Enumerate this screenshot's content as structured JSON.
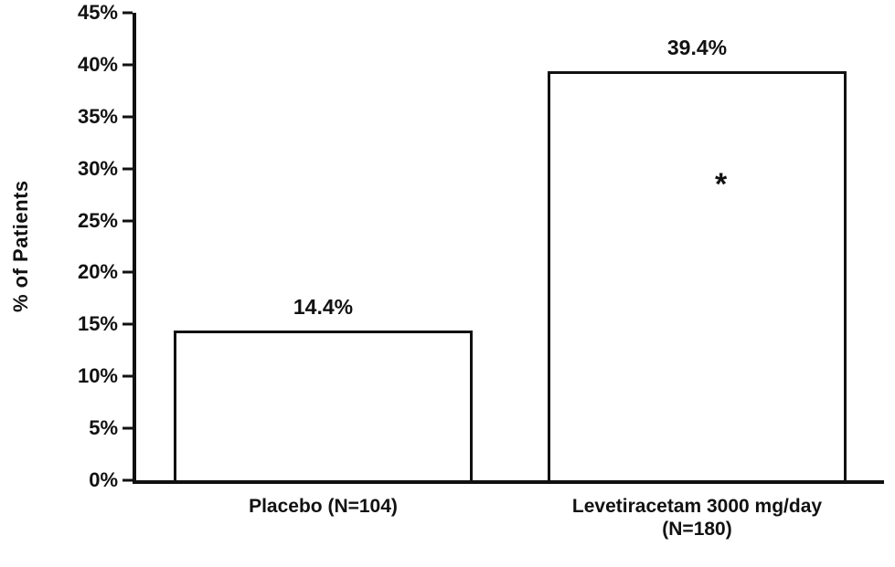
{
  "chart_data": {
    "type": "bar",
    "title": "",
    "xlabel": "",
    "ylabel": "% of Patients",
    "ylim": [
      0,
      45
    ],
    "grid": false,
    "legend_position": "none",
    "categories": [
      "Placebo (N=104)",
      "Levetiracetam 3000 mg/day\n(N=180)"
    ],
    "values": [
      14.4,
      39.4
    ],
    "bar_labels": [
      "14.4%",
      "39.4%"
    ],
    "yticks": [
      {
        "value": 0,
        "label": "0%"
      },
      {
        "value": 5,
        "label": "5%"
      },
      {
        "value": 10,
        "label": "10%"
      },
      {
        "value": 15,
        "label": "15%"
      },
      {
        "value": 20,
        "label": "20%"
      },
      {
        "value": 25,
        "label": "25%"
      },
      {
        "value": 30,
        "label": "30%"
      },
      {
        "value": 35,
        "label": "35%"
      },
      {
        "value": 40,
        "label": "40%"
      },
      {
        "value": 45,
        "label": "45%"
      }
    ],
    "annotations": [
      {
        "bar_index": 1,
        "text": "*",
        "y": 28.5,
        "x_frac": 0.58
      }
    ],
    "colors": {
      "bar_fill": "#ffffff",
      "bar_border": "#111111",
      "axis": "#111111",
      "text": "#111111"
    }
  }
}
